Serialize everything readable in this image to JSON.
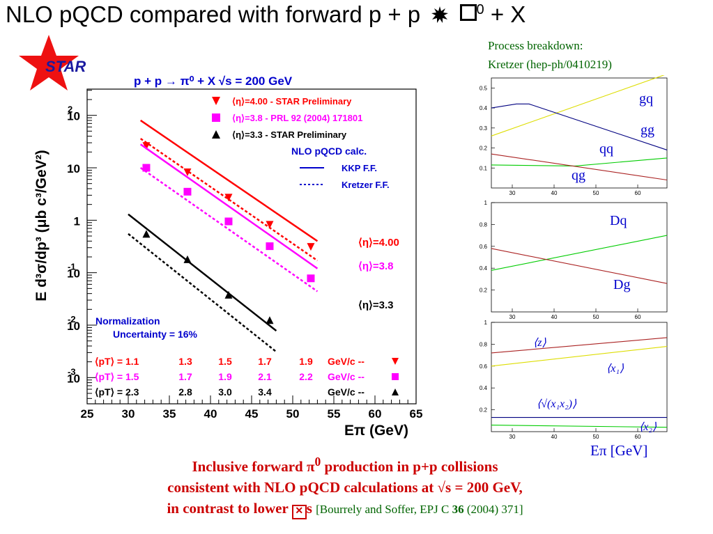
{
  "slide": {
    "title_main": "NLO pQCD compared with forward p + p",
    "title_tail": "+ X",
    "title_sup": "0",
    "star_logo": "STAR",
    "process_line1": "Process breakdown:",
    "process_line2": "Kretzer (hep-ph/0410219)",
    "caption_l1a": "Inclusive forward π",
    "caption_l1sup": "0",
    "caption_l1b": " production in p+p collisions",
    "caption_l2": "consistent with NLO pQCD calculations at √s = 200 GeV,",
    "caption_l3a": "in contrast to lower ",
    "caption_l3b": "s",
    "caption_ref_a": "[Bourrely and Soffer, EPJ C ",
    "caption_ref_bold": "36",
    "caption_ref_b": " (2004) 371]",
    "colors": {
      "red": "#ff0000",
      "magenta": "#ff00ff",
      "black": "#000000",
      "blue": "#0000cc",
      "green": "#00aa00",
      "darkred": "#cc0000"
    }
  },
  "chart_data": [
    {
      "type": "scatter",
      "title": "p + p → π⁰ + X   √s = 200 GeV",
      "xlabel": "Eπ (GeV)",
      "ylabel": "E d³σ/dp³ (μb c³/GeV²)",
      "xlim": [
        25,
        65
      ],
      "ylim_log10": [
        -3.5,
        2.5
      ],
      "log_y": true,
      "x_ticks": [
        "25",
        "30",
        "35",
        "40",
        "45",
        "50",
        "55",
        "60",
        "65"
      ],
      "y_ticks": [
        {
          "base": "10",
          "exp": "2",
          "v": 2
        },
        {
          "base": "10",
          "exp": "",
          "v": 1
        },
        {
          "base": "1",
          "exp": "",
          "v": 0
        },
        {
          "base": "10",
          "exp": "-1",
          "v": -1
        },
        {
          "base": "10",
          "exp": "-2",
          "v": -2
        },
        {
          "base": "10",
          "exp": "-3",
          "v": -3
        }
      ],
      "legend": [
        {
          "marker": "triangle-down",
          "color": "#ff0000",
          "text": "⟨η⟩=4.00 - STAR Preliminary"
        },
        {
          "marker": "square",
          "color": "#ff00ff",
          "text": "⟨η⟩=3.8 - PRL 92 (2004) 171801"
        },
        {
          "marker": "triangle-up",
          "color": "#000000",
          "text": "⟨η⟩=3.3 - STAR Preliminary"
        }
      ],
      "nlo_title": "NLO pQCD calc.",
      "nlo_kkp": "KKP F.F.",
      "nlo_kretzer": "Kretzer F.F.",
      "series": [
        {
          "name": "⟨η⟩=4.00",
          "color": "#ff0000",
          "marker": "triangle-down",
          "x": [
            32.2,
            37.2,
            42.2,
            47.2,
            52.2
          ],
          "y": [
            26,
            8.2,
            2.7,
            0.82,
            0.31
          ],
          "kkp": [
            [
              31.5,
              80
            ],
            [
              53,
              0.4
            ]
          ],
          "kretzer": [
            [
              31.5,
              36
            ],
            [
              53,
              0.17
            ]
          ]
        },
        {
          "name": "⟨η⟩=3.8",
          "color": "#ff00ff",
          "marker": "square",
          "x": [
            32.2,
            37.2,
            42.2,
            47.2,
            52.2
          ],
          "y": [
            10,
            3.5,
            0.95,
            0.32,
            0.078
          ],
          "kkp": [
            [
              31.5,
              28
            ],
            [
              53,
              0.12
            ]
          ],
          "kretzer": [
            [
              31.5,
              10
            ],
            [
              53,
              0.044
            ]
          ]
        },
        {
          "name": "⟨η⟩=3.3",
          "color": "#000000",
          "marker": "triangle-up",
          "x": [
            32.2,
            37.2,
            42.2,
            47.2
          ],
          "y": [
            0.55,
            0.18,
            0.038,
            0.0125
          ],
          "kkp": [
            [
              30,
              1.3
            ],
            [
              48,
              0.0078
            ]
          ],
          "kretzer": [
            [
              30,
              0.55
            ],
            [
              48,
              0.0031
            ]
          ]
        }
      ],
      "right_labels": [
        {
          "text": "⟨η⟩=4.00",
          "color": "#ff0000"
        },
        {
          "text": "⟨η⟩=3.8",
          "color": "#ff00ff"
        },
        {
          "text": "⟨η⟩=3.3",
          "color": "#000000"
        }
      ],
      "norm_line1": "Normalization",
      "norm_line2": "Uncertainty = 16%",
      "pt_rows": [
        {
          "color": "#ff0000",
          "label": "⟨pT⟩ = 1.1",
          "vals": [
            "1.3",
            "1.5",
            "1.7",
            "1.9"
          ],
          "unit": "GeV/c  --",
          "marker": "triangle-down"
        },
        {
          "color": "#ff00ff",
          "label": "⟨pT⟩ = 1.5",
          "vals": [
            "1.7",
            "1.9",
            "2.1",
            "2.2"
          ],
          "unit": "GeV/c  --",
          "marker": "square"
        },
        {
          "color": "#000000",
          "label": "⟨pT⟩ = 2.3",
          "vals": [
            "2.8",
            "3.0",
            "3.4",
            ""
          ],
          "unit": "GeV/c  --",
          "marker": "triangle-up"
        }
      ]
    },
    {
      "type": "line",
      "title": "",
      "xlim": [
        25,
        67
      ],
      "ylim": [
        0,
        0.55
      ],
      "x_ticks": [
        "30",
        "40",
        "50",
        "60"
      ],
      "y_ticks": [
        "0.1",
        "0.2",
        "0.3",
        "0.4",
        "0.5"
      ],
      "series": [
        {
          "name": "gq",
          "color": "#dddd00",
          "x": [
            25,
            67
          ],
          "y": [
            0.26,
            0.57
          ]
        },
        {
          "name": "gg",
          "color": "#000080",
          "x": [
            25,
            31,
            34,
            67
          ],
          "y": [
            0.4,
            0.42,
            0.42,
            0.19
          ]
        },
        {
          "name": "qq",
          "color": "#00cc00",
          "x": [
            25,
            45,
            67
          ],
          "y": [
            0.115,
            0.11,
            0.15
          ]
        },
        {
          "name": "qg",
          "color": "#aa2222",
          "x": [
            25,
            67
          ],
          "y": [
            0.17,
            0.04
          ]
        }
      ]
    },
    {
      "type": "line",
      "title": "",
      "xlim": [
        25,
        67
      ],
      "ylim": [
        0,
        1
      ],
      "x_ticks": [
        "30",
        "40",
        "50",
        "60"
      ],
      "y_ticks": [
        "0.2",
        "0.4",
        "0.6",
        "0.8",
        "1"
      ],
      "series": [
        {
          "name": "Dq",
          "color": "#00cc00",
          "x": [
            25,
            67
          ],
          "y": [
            0.38,
            0.7
          ]
        },
        {
          "name": "Dg",
          "color": "#aa2222",
          "x": [
            25,
            67
          ],
          "y": [
            0.58,
            0.26
          ]
        }
      ]
    },
    {
      "type": "line",
      "title": "",
      "xlabel": "Eπ [GeV]",
      "xlim": [
        25,
        67
      ],
      "ylim": [
        0,
        1
      ],
      "x_ticks": [
        "30",
        "40",
        "50",
        "60"
      ],
      "y_ticks": [
        "0.2",
        "0.4",
        "0.6",
        "0.8",
        "1"
      ],
      "series": [
        {
          "name": "⟨z⟩",
          "color": "#aa2222",
          "x": [
            25,
            67
          ],
          "y": [
            0.72,
            0.86
          ]
        },
        {
          "name": "⟨x₁⟩",
          "color": "#dddd00",
          "x": [
            25,
            67
          ],
          "y": [
            0.6,
            0.78
          ]
        },
        {
          "name": "⟨√(x₁x₂)⟩",
          "color": "#000080",
          "x": [
            25,
            67
          ],
          "y": [
            0.13,
            0.13
          ]
        },
        {
          "name": "⟨x₂⟩",
          "color": "#00cc00",
          "x": [
            25,
            67
          ],
          "y": [
            0.06,
            0.04
          ]
        }
      ]
    }
  ]
}
